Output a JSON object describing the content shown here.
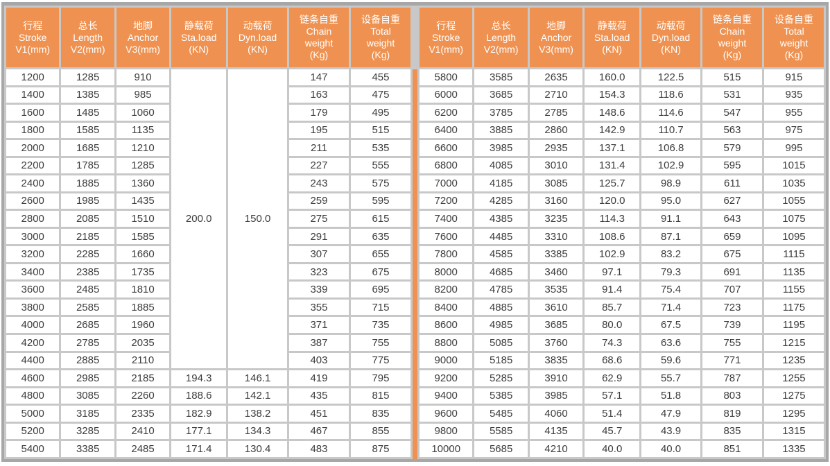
{
  "colors": {
    "header_bg": "#EF9251",
    "header_text": "#FFFFFF",
    "body_text": "#3C3C3C",
    "cell_bg": "#FFFFFF",
    "grid": "#C8C8C8",
    "outer_border": "#A7A7A7",
    "middle_divider": "#EF9251"
  },
  "chart_data": {
    "type": "table",
    "title": "",
    "layout": "two side-by-side halves with identical columns, separated by an orange vertical divider",
    "columns": [
      {
        "key": "stroke",
        "lines": [
          "行程",
          "Stroke",
          "V1(mm)"
        ]
      },
      {
        "key": "length",
        "lines": [
          "总长",
          "Length",
          "V2(mm)"
        ]
      },
      {
        "key": "anchor",
        "lines": [
          "地脚",
          "Anchor",
          "V3(mm)"
        ]
      },
      {
        "key": "sta-load",
        "lines": [
          "静载荷",
          "Sta.load",
          "(KN)"
        ]
      },
      {
        "key": "dyn-load",
        "lines": [
          "动载荷",
          "Dyn.load",
          "(KN)"
        ]
      },
      {
        "key": "chain-weight",
        "lines": [
          "链条自重",
          "Chain",
          "weight",
          "(Kg)"
        ]
      },
      {
        "key": "total-weight",
        "lines": [
          "设备自重",
          "Total",
          "weight",
          "(Kg)"
        ]
      }
    ],
    "left_merged": {
      "sta_load": "200.0",
      "dyn_load": "150.0",
      "rows_spanned": 17
    },
    "left_rows": [
      [
        "1200",
        "1285",
        "910",
        null,
        null,
        "147",
        "455"
      ],
      [
        "1400",
        "1385",
        "985",
        null,
        null,
        "163",
        "475"
      ],
      [
        "1600",
        "1485",
        "1060",
        null,
        null,
        "179",
        "495"
      ],
      [
        "1800",
        "1585",
        "1135",
        null,
        null,
        "195",
        "515"
      ],
      [
        "2000",
        "1685",
        "1210",
        null,
        null,
        "211",
        "535"
      ],
      [
        "2200",
        "1785",
        "1285",
        null,
        null,
        "227",
        "555"
      ],
      [
        "2400",
        "1885",
        "1360",
        null,
        null,
        "243",
        "575"
      ],
      [
        "2600",
        "1985",
        "1435",
        null,
        null,
        "259",
        "595"
      ],
      [
        "2800",
        "2085",
        "1510",
        null,
        null,
        "275",
        "615"
      ],
      [
        "3000",
        "2185",
        "1585",
        null,
        null,
        "291",
        "635"
      ],
      [
        "3200",
        "2285",
        "1660",
        null,
        null,
        "307",
        "655"
      ],
      [
        "3400",
        "2385",
        "1735",
        null,
        null,
        "323",
        "675"
      ],
      [
        "3600",
        "2485",
        "1810",
        null,
        null,
        "339",
        "695"
      ],
      [
        "3800",
        "2585",
        "1885",
        null,
        null,
        "355",
        "715"
      ],
      [
        "4000",
        "2685",
        "1960",
        null,
        null,
        "371",
        "735"
      ],
      [
        "4200",
        "2785",
        "2035",
        null,
        null,
        "387",
        "755"
      ],
      [
        "4400",
        "2885",
        "2110",
        null,
        null,
        "403",
        "775"
      ],
      [
        "4600",
        "2985",
        "2185",
        "194.3",
        "146.1",
        "419",
        "795"
      ],
      [
        "4800",
        "3085",
        "2260",
        "188.6",
        "142.1",
        "435",
        "815"
      ],
      [
        "5000",
        "3185",
        "2335",
        "182.9",
        "138.2",
        "451",
        "835"
      ],
      [
        "5200",
        "3285",
        "2410",
        "177.1",
        "134.3",
        "467",
        "855"
      ],
      [
        "5400",
        "3385",
        "2485",
        "171.4",
        "130.4",
        "483",
        "875"
      ]
    ],
    "right_rows": [
      [
        "5800",
        "3585",
        "2635",
        "160.0",
        "122.5",
        "515",
        "915"
      ],
      [
        "6000",
        "3685",
        "2710",
        "154.3",
        "118.6",
        "531",
        "935"
      ],
      [
        "6200",
        "3785",
        "2785",
        "148.6",
        "114.6",
        "547",
        "955"
      ],
      [
        "6400",
        "3885",
        "2860",
        "142.9",
        "110.7",
        "563",
        "975"
      ],
      [
        "6600",
        "3985",
        "2935",
        "137.1",
        "106.8",
        "579",
        "995"
      ],
      [
        "6800",
        "4085",
        "3010",
        "131.4",
        "102.9",
        "595",
        "1015"
      ],
      [
        "7000",
        "4185",
        "3085",
        "125.7",
        "98.9",
        "611",
        "1035"
      ],
      [
        "7200",
        "4285",
        "3160",
        "120.0",
        "95.0",
        "627",
        "1055"
      ],
      [
        "7400",
        "4385",
        "3235",
        "114.3",
        "91.1",
        "643",
        "1075"
      ],
      [
        "7600",
        "4485",
        "3310",
        "108.6",
        "87.1",
        "659",
        "1095"
      ],
      [
        "7800",
        "4585",
        "3385",
        "102.9",
        "83.2",
        "675",
        "1115"
      ],
      [
        "8000",
        "4685",
        "3460",
        "97.1",
        "79.3",
        "691",
        "1135"
      ],
      [
        "8200",
        "4785",
        "3535",
        "91.4",
        "75.4",
        "707",
        "1155"
      ],
      [
        "8400",
        "4885",
        "3610",
        "85.7",
        "71.4",
        "723",
        "1175"
      ],
      [
        "8600",
        "4985",
        "3685",
        "80.0",
        "67.5",
        "739",
        "1195"
      ],
      [
        "8800",
        "5085",
        "3760",
        "74.3",
        "63.6",
        "755",
        "1215"
      ],
      [
        "9000",
        "5185",
        "3835",
        "68.6",
        "59.6",
        "771",
        "1235"
      ],
      [
        "9200",
        "5285",
        "3910",
        "62.9",
        "55.7",
        "787",
        "1255"
      ],
      [
        "9400",
        "5385",
        "3985",
        "57.1",
        "51.8",
        "803",
        "1275"
      ],
      [
        "9600",
        "5485",
        "4060",
        "51.4",
        "47.9",
        "819",
        "1295"
      ],
      [
        "9800",
        "5585",
        "4135",
        "45.7",
        "43.9",
        "835",
        "1315"
      ],
      [
        "10000",
        "5685",
        "4210",
        "40.0",
        "40.0",
        "851",
        "1335"
      ]
    ]
  }
}
